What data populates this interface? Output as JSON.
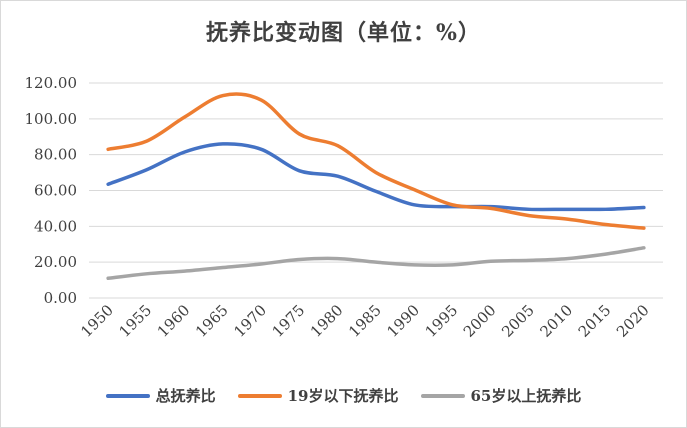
{
  "chart_data": {
    "type": "line",
    "title": "抚养比变动图（单位：%）",
    "xlabel": "",
    "ylabel": "",
    "x": [
      "1950",
      "1955",
      "1960",
      "1965",
      "1970",
      "1975",
      "1980",
      "1985",
      "1990",
      "1995",
      "2000",
      "2005",
      "2010",
      "2015",
      "2020"
    ],
    "ylim": [
      0,
      120
    ],
    "yticks": [
      "0.00",
      "20.00",
      "40.00",
      "60.00",
      "80.00",
      "100.00",
      "120.00"
    ],
    "grid": true,
    "legend_position": "bottom",
    "series": [
      {
        "name": "总抚养比",
        "color": "#4472C4",
        "values": [
          63.5,
          71.5,
          81.5,
          86.0,
          83.0,
          71.0,
          68.0,
          59.5,
          52.0,
          51.0,
          51.0,
          49.5,
          49.5,
          49.5,
          50.5
        ]
      },
      {
        "name": "19岁以下抚养比",
        "color": "#ED7D31",
        "values": [
          83.0,
          87.5,
          101.0,
          113.0,
          110.5,
          91.5,
          85.0,
          70.0,
          60.5,
          52.0,
          50.0,
          46.0,
          44.0,
          41.0,
          39.0
        ]
      },
      {
        "name": "65岁以上抚养比",
        "color": "#A5A5A5",
        "values": [
          11.0,
          13.5,
          15.0,
          17.0,
          19.0,
          21.5,
          22.0,
          20.0,
          18.5,
          18.5,
          20.5,
          21.0,
          22.0,
          24.5,
          28.0
        ]
      }
    ]
  }
}
